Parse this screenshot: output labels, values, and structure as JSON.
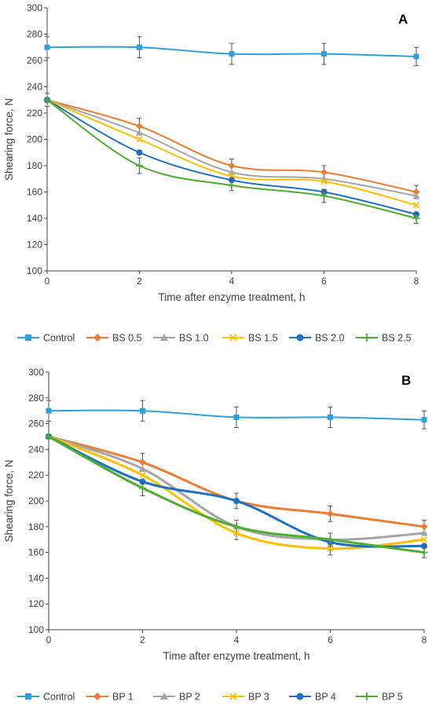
{
  "chart_data": [
    {
      "type": "line",
      "panel_label": "A",
      "xlabel": "Time after enzyme treatment, h",
      "ylabel": "Shearing force, N",
      "x": [
        0,
        2,
        4,
        6,
        8
      ],
      "xticks": [
        "0",
        "2",
        "4",
        "6",
        "8"
      ],
      "ylim": [
        100,
        300
      ],
      "yticks": [
        "100",
        "120",
        "140",
        "160",
        "180",
        "200",
        "220",
        "240",
        "260",
        "280",
        "300"
      ],
      "grid": false,
      "legend_position": "bottom",
      "series": [
        {
          "name": "Control",
          "color": "#2EA0DC",
          "marker": "square",
          "values": [
            270,
            270,
            265,
            265,
            263
          ],
          "err": [
            8,
            8,
            8,
            8,
            7
          ]
        },
        {
          "name": "BS 0.5",
          "color": "#ED7D31",
          "marker": "diamond",
          "values": [
            230,
            210,
            180,
            175,
            160
          ],
          "err": [
            0,
            6,
            5,
            5,
            5
          ]
        },
        {
          "name": "BS 1.0",
          "color": "#A5A5A5",
          "marker": "triangle",
          "values": [
            230,
            205,
            175,
            170,
            157
          ],
          "err": [
            0,
            0,
            0,
            0,
            0
          ]
        },
        {
          "name": "BS 1.5",
          "color": "#FFC000",
          "marker": "x",
          "values": [
            230,
            200,
            172,
            168,
            150
          ],
          "err": [
            0,
            0,
            0,
            0,
            0
          ]
        },
        {
          "name": "BS 2.0",
          "color": "#1F6FC5",
          "marker": "circle",
          "values": [
            230,
            190,
            169,
            160,
            143
          ],
          "err": [
            5,
            0,
            0,
            0,
            0
          ]
        },
        {
          "name": "BS 2.5",
          "color": "#4CAF30",
          "marker": "plus",
          "values": [
            230,
            180,
            165,
            157,
            140
          ],
          "err": [
            0,
            6,
            4,
            5,
            4
          ]
        }
      ]
    },
    {
      "type": "line",
      "panel_label": "B",
      "xlabel": "Time after enzyme treatment, h",
      "ylabel": "Shearing force, N",
      "x": [
        0,
        2,
        4,
        6,
        8
      ],
      "xticks": [
        "0",
        "2",
        "4",
        "6",
        "8"
      ],
      "ylim": [
        100,
        300
      ],
      "yticks": [
        "100",
        "120",
        "140",
        "160",
        "180",
        "200",
        "220",
        "240",
        "260",
        "280",
        "300"
      ],
      "grid": false,
      "legend_position": "bottom",
      "series": [
        {
          "name": "Control",
          "color": "#2EA0DC",
          "marker": "square",
          "values": [
            270,
            270,
            265,
            265,
            263
          ],
          "err": [
            8,
            8,
            8,
            8,
            7
          ]
        },
        {
          "name": "BP 1",
          "color": "#ED7D31",
          "marker": "diamond",
          "values": [
            250,
            230,
            200,
            190,
            180
          ],
          "err": [
            0,
            7,
            6,
            6,
            5
          ]
        },
        {
          "name": "BP 2",
          "color": "#A5A5A5",
          "marker": "triangle",
          "values": [
            250,
            225,
            180,
            170,
            175
          ],
          "err": [
            0,
            0,
            5,
            0,
            0
          ]
        },
        {
          "name": "BP 3",
          "color": "#FFC000",
          "marker": "x",
          "values": [
            250,
            220,
            175,
            163,
            170
          ],
          "err": [
            0,
            0,
            5,
            5,
            0
          ]
        },
        {
          "name": "BP 4",
          "color": "#1F6FC5",
          "marker": "circle",
          "values": [
            250,
            215,
            200,
            168,
            165
          ],
          "err": [
            0,
            0,
            0,
            0,
            0
          ]
        },
        {
          "name": "BP 5",
          "color": "#4CAF30",
          "marker": "plus",
          "values": [
            250,
            210,
            180,
            170,
            160
          ],
          "err": [
            0,
            6,
            0,
            5,
            4
          ]
        }
      ]
    }
  ]
}
